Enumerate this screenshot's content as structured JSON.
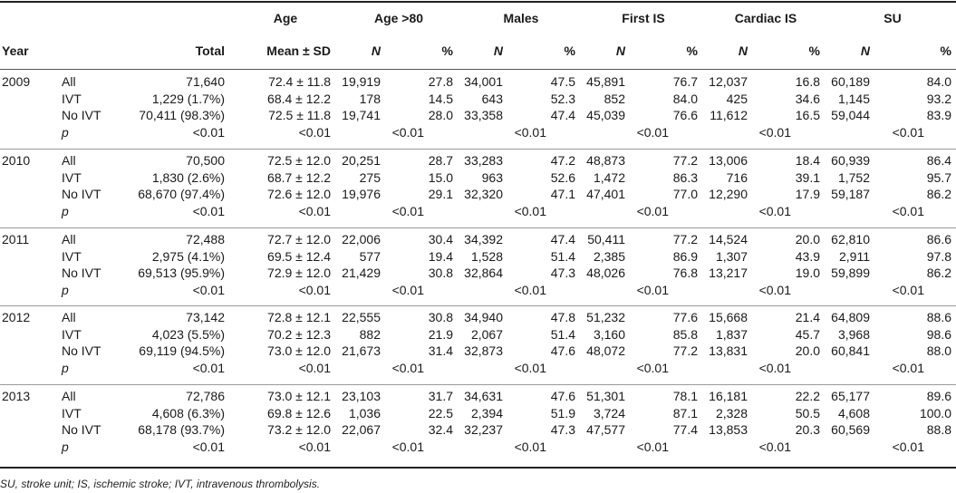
{
  "header": {
    "age_group": "Age",
    "age80_group": "Age >80",
    "males_group": "Males",
    "first_is_group": "First IS",
    "cardiac_is_group": "Cardiac IS",
    "su_group": "SU",
    "year": "Year",
    "total": "Total",
    "mean_sd": "Mean ± SD",
    "n": "N",
    "pct": "%"
  },
  "years": [
    {
      "year": "2009",
      "rows": [
        {
          "label": "All",
          "total": "71,640",
          "age": "72.4 ± 11.8",
          "a80_n": "19,919",
          "a80_p": "27.8",
          "m_n": "34,001",
          "m_p": "47.5",
          "f_n": "45,891",
          "f_p": "76.7",
          "c_n": "12,037",
          "c_p": "16.8",
          "su_n": "60,189",
          "su_p": "84.0"
        },
        {
          "label": "IVT",
          "total": "1,229 (1.7%)",
          "age": "68.4 ± 12.2",
          "a80_n": "178",
          "a80_p": "14.5",
          "m_n": "643",
          "m_p": "52.3",
          "f_n": "852",
          "f_p": "84.0",
          "c_n": "425",
          "c_p": "34.6",
          "su_n": "1,145",
          "su_p": "93.2"
        },
        {
          "label": "No IVT",
          "total": "70,411 (98.3%)",
          "age": "72.5 ± 11.8",
          "a80_n": "19,741",
          "a80_p": "28.0",
          "m_n": "33,358",
          "m_p": "47.4",
          "f_n": "45,039",
          "f_p": "76.6",
          "c_n": "11,612",
          "c_p": "16.5",
          "su_n": "59,044",
          "su_p": "83.9"
        }
      ],
      "p": {
        "label": "p",
        "total": "<0.01",
        "age": "<0.01",
        "a80": "<0.01",
        "m": "<0.01",
        "f": "<0.01",
        "c": "<0.01",
        "su": "<0.01"
      }
    },
    {
      "year": "2010",
      "rows": [
        {
          "label": "All",
          "total": "70,500",
          "age": "72.5 ± 12.0",
          "a80_n": "20,251",
          "a80_p": "28.7",
          "m_n": "33,283",
          "m_p": "47.2",
          "f_n": "48,873",
          "f_p": "77.2",
          "c_n": "13,006",
          "c_p": "18.4",
          "su_n": "60,939",
          "su_p": "86.4"
        },
        {
          "label": "IVT",
          "total": "1,830 (2.6%)",
          "age": "68.7 ± 12.2",
          "a80_n": "275",
          "a80_p": "15.0",
          "m_n": "963",
          "m_p": "52.6",
          "f_n": "1,472",
          "f_p": "86.3",
          "c_n": "716",
          "c_p": "39.1",
          "su_n": "1,752",
          "su_p": "95.7"
        },
        {
          "label": "No IVT",
          "total": "68,670 (97.4%)",
          "age": "72.6 ± 12.0",
          "a80_n": "19,976",
          "a80_p": "29.1",
          "m_n": "32,320",
          "m_p": "47.1",
          "f_n": "47,401",
          "f_p": "77.0",
          "c_n": "12,290",
          "c_p": "17.9",
          "su_n": "59,187",
          "su_p": "86.2"
        }
      ],
      "p": {
        "label": "p",
        "total": "<0.01",
        "age": "<0.01",
        "a80": "<0.01",
        "m": "<0.01",
        "f": "<0.01",
        "c": "<0.01",
        "su": "<0.01"
      }
    },
    {
      "year": "2011",
      "rows": [
        {
          "label": "All",
          "total": "72,488",
          "age": "72.7 ± 12.0",
          "a80_n": "22,006",
          "a80_p": "30.4",
          "m_n": "34,392",
          "m_p": "47.4",
          "f_n": "50,411",
          "f_p": "77.2",
          "c_n": "14,524",
          "c_p": "20.0",
          "su_n": "62,810",
          "su_p": "86.6"
        },
        {
          "label": "IVT",
          "total": "2,975 (4.1%)",
          "age": "69.5 ± 12.4",
          "a80_n": "577",
          "a80_p": "19.4",
          "m_n": "1,528",
          "m_p": "51.4",
          "f_n": "2,385",
          "f_p": "86.9",
          "c_n": "1,307",
          "c_p": "43.9",
          "su_n": "2,911",
          "su_p": "97.8"
        },
        {
          "label": "No IVT",
          "total": "69,513 (95.9%)",
          "age": "72.9 ± 12.0",
          "a80_n": "21,429",
          "a80_p": "30.8",
          "m_n": "32,864",
          "m_p": "47.3",
          "f_n": "48,026",
          "f_p": "76.8",
          "c_n": "13,217",
          "c_p": "19.0",
          "su_n": "59,899",
          "su_p": "86.2"
        }
      ],
      "p": {
        "label": "p",
        "total": "<0.01",
        "age": "<0.01",
        "a80": "<0.01",
        "m": "<0.01",
        "f": "<0.01",
        "c": "<0.01",
        "su": "<0.01"
      }
    },
    {
      "year": "2012",
      "rows": [
        {
          "label": "All",
          "total": "73,142",
          "age": "72.8 ± 12.1",
          "a80_n": "22,555",
          "a80_p": "30.8",
          "m_n": "34,940",
          "m_p": "47.8",
          "f_n": "51,232",
          "f_p": "77.6",
          "c_n": "15,668",
          "c_p": "21.4",
          "su_n": "64,809",
          "su_p": "88.6"
        },
        {
          "label": "IVT",
          "total": "4,023 (5.5%)",
          "age": "70.2 ± 12.3",
          "a80_n": "882",
          "a80_p": "21.9",
          "m_n": "2,067",
          "m_p": "51.4",
          "f_n": "3,160",
          "f_p": "85.8",
          "c_n": "1,837",
          "c_p": "45.7",
          "su_n": "3,968",
          "su_p": "98.6"
        },
        {
          "label": "No IVT",
          "total": "69,119 (94.5%)",
          "age": "73.0 ± 12.0",
          "a80_n": "21,673",
          "a80_p": "31.4",
          "m_n": "32,873",
          "m_p": "47.6",
          "f_n": "48,072",
          "f_p": "77.2",
          "c_n": "13,831",
          "c_p": "20.0",
          "su_n": "60,841",
          "su_p": "88.0"
        }
      ],
      "p": {
        "label": "p",
        "total": "<0.01",
        "age": "<0.01",
        "a80": "<0.01",
        "m": "<0.01",
        "f": "<0.01",
        "c": "<0.01",
        "su": "<0.01"
      }
    },
    {
      "year": "2013",
      "rows": [
        {
          "label": "All",
          "total": "72,786",
          "age": "73.0 ± 12.1",
          "a80_n": "23,103",
          "a80_p": "31.7",
          "m_n": "34,631",
          "m_p": "47.6",
          "f_n": "51,301",
          "f_p": "78.1",
          "c_n": "16,181",
          "c_p": "22.2",
          "su_n": "65,177",
          "su_p": "89.6"
        },
        {
          "label": "IVT",
          "total": "4,608 (6.3%)",
          "age": "69.8 ± 12.6",
          "a80_n": "1,036",
          "a80_p": "22.5",
          "m_n": "2,394",
          "m_p": "51.9",
          "f_n": "3,724",
          "f_p": "87.1",
          "c_n": "2,328",
          "c_p": "50.5",
          "su_n": "4,608",
          "su_p": "100.0"
        },
        {
          "label": "No IVT",
          "total": "68,178 (93.7%)",
          "age": "73.2 ± 12.0",
          "a80_n": "22,067",
          "a80_p": "32.4",
          "m_n": "32,237",
          "m_p": "47.3",
          "f_n": "47,577",
          "f_p": "77.4",
          "c_n": "13,853",
          "c_p": "20.3",
          "su_n": "60,569",
          "su_p": "88.8"
        }
      ],
      "p": {
        "label": "p",
        "total": "<0.01",
        "age": "<0.01",
        "a80": "<0.01",
        "m": "<0.01",
        "f": "<0.01",
        "c": "<0.01",
        "su": "<0.01"
      }
    }
  ],
  "footnote": "SU, stroke unit; IS, ischemic stroke; IVT, intravenous thrombolysis."
}
